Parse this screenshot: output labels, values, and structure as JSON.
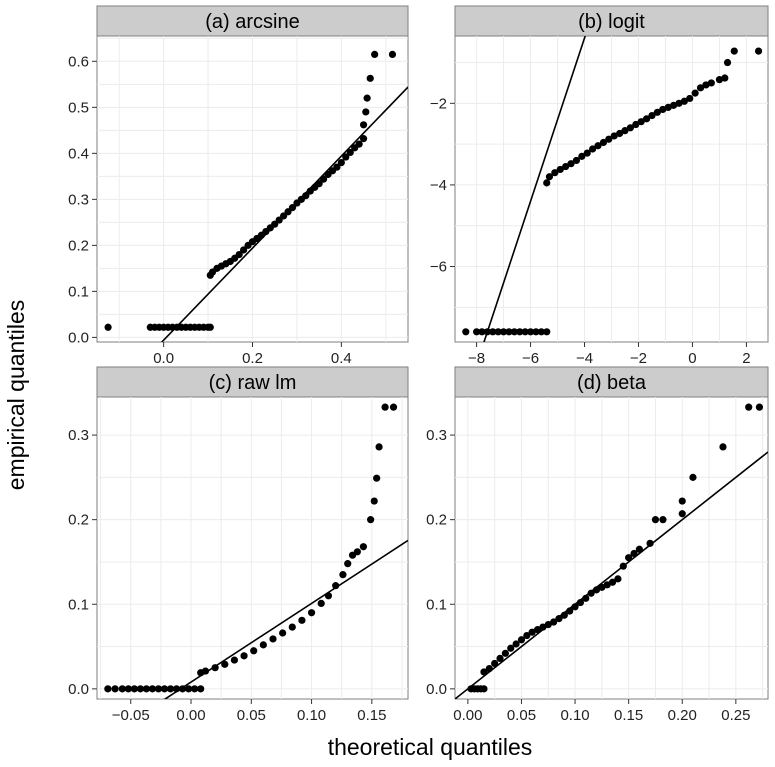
{
  "figure": {
    "xlabel": "theoretical quantiles",
    "ylabel": "empirical quantiles"
  },
  "chart_data": [
    {
      "type": "scatter",
      "title": "(a) arcsine",
      "xlim": [
        -0.15,
        0.55
      ],
      "ylim": [
        -0.01,
        0.655
      ],
      "xticks": [
        0.0,
        0.2,
        0.4
      ],
      "xtick_labels": [
        "0.0",
        "0.2",
        "0.4"
      ],
      "yticks": [
        0.0,
        0.1,
        0.2,
        0.3,
        0.4,
        0.5,
        0.6
      ],
      "ytick_labels": [
        "0.0",
        "0.1",
        "0.2",
        "0.3",
        "0.4",
        "0.5",
        "0.6"
      ],
      "ref_line": {
        "slope": 1.0,
        "intercept": -0.006
      },
      "points": [
        [
          -0.125,
          0.022
        ],
        [
          -0.03,
          0.022
        ],
        [
          -0.02,
          0.022
        ],
        [
          -0.01,
          0.022
        ],
        [
          0.0,
          0.022
        ],
        [
          0.01,
          0.022
        ],
        [
          0.02,
          0.022
        ],
        [
          0.03,
          0.022
        ],
        [
          0.04,
          0.022
        ],
        [
          0.05,
          0.022
        ],
        [
          0.06,
          0.022
        ],
        [
          0.07,
          0.022
        ],
        [
          0.08,
          0.022
        ],
        [
          0.09,
          0.022
        ],
        [
          0.1,
          0.022
        ],
        [
          0.105,
          0.022
        ],
        [
          0.105,
          0.135
        ],
        [
          0.11,
          0.142
        ],
        [
          0.12,
          0.15
        ],
        [
          0.13,
          0.155
        ],
        [
          0.14,
          0.16
        ],
        [
          0.15,
          0.165
        ],
        [
          0.16,
          0.172
        ],
        [
          0.17,
          0.18
        ],
        [
          0.18,
          0.19
        ],
        [
          0.19,
          0.2
        ],
        [
          0.2,
          0.208
        ],
        [
          0.21,
          0.215
        ],
        [
          0.22,
          0.222
        ],
        [
          0.23,
          0.23
        ],
        [
          0.24,
          0.238
        ],
        [
          0.25,
          0.246
        ],
        [
          0.26,
          0.255
        ],
        [
          0.27,
          0.264
        ],
        [
          0.28,
          0.273
        ],
        [
          0.29,
          0.282
        ],
        [
          0.3,
          0.292
        ],
        [
          0.31,
          0.3
        ],
        [
          0.32,
          0.308
        ],
        [
          0.33,
          0.318
        ],
        [
          0.34,
          0.326
        ],
        [
          0.35,
          0.334
        ],
        [
          0.36,
          0.344
        ],
        [
          0.37,
          0.354
        ],
        [
          0.38,
          0.362
        ],
        [
          0.39,
          0.37
        ],
        [
          0.4,
          0.38
        ],
        [
          0.41,
          0.392
        ],
        [
          0.42,
          0.402
        ],
        [
          0.43,
          0.412
        ],
        [
          0.44,
          0.42
        ],
        [
          0.45,
          0.432
        ],
        [
          0.45,
          0.462
        ],
        [
          0.455,
          0.49
        ],
        [
          0.458,
          0.52
        ],
        [
          0.465,
          0.563
        ],
        [
          0.475,
          0.615
        ],
        [
          0.515,
          0.615
        ]
      ]
    },
    {
      "type": "scatter",
      "title": "(b) logit",
      "xlim": [
        -8.8,
        2.8
      ],
      "ylim": [
        -7.85,
        -0.35
      ],
      "xticks": [
        -8,
        -6,
        -4,
        -2,
        0,
        2
      ],
      "xtick_labels": [
        "−8",
        "−6",
        "−4",
        "−2",
        "0",
        "2"
      ],
      "yticks": [
        -6,
        -4,
        -2
      ],
      "ytick_labels": [
        "−6",
        "−4",
        "−2"
      ],
      "ref_line": {
        "slope": 2.0,
        "intercept": 7.6
      },
      "points": [
        [
          -8.4,
          -7.6
        ],
        [
          -8.0,
          -7.6
        ],
        [
          -7.8,
          -7.6
        ],
        [
          -7.6,
          -7.6
        ],
        [
          -7.4,
          -7.6
        ],
        [
          -7.2,
          -7.6
        ],
        [
          -7.0,
          -7.6
        ],
        [
          -6.8,
          -7.6
        ],
        [
          -6.6,
          -7.6
        ],
        [
          -6.4,
          -7.6
        ],
        [
          -6.2,
          -7.6
        ],
        [
          -6.0,
          -7.6
        ],
        [
          -5.8,
          -7.6
        ],
        [
          -5.6,
          -7.6
        ],
        [
          -5.4,
          -7.6
        ],
        [
          -5.4,
          -3.95
        ],
        [
          -5.3,
          -3.8
        ],
        [
          -5.1,
          -3.7
        ],
        [
          -4.9,
          -3.62
        ],
        [
          -4.7,
          -3.55
        ],
        [
          -4.5,
          -3.48
        ],
        [
          -4.3,
          -3.4
        ],
        [
          -4.1,
          -3.3
        ],
        [
          -3.9,
          -3.22
        ],
        [
          -3.7,
          -3.12
        ],
        [
          -3.5,
          -3.04
        ],
        [
          -3.3,
          -2.96
        ],
        [
          -3.1,
          -2.88
        ],
        [
          -2.9,
          -2.8
        ],
        [
          -2.7,
          -2.74
        ],
        [
          -2.5,
          -2.67
        ],
        [
          -2.3,
          -2.6
        ],
        [
          -2.1,
          -2.52
        ],
        [
          -1.9,
          -2.45
        ],
        [
          -1.7,
          -2.38
        ],
        [
          -1.5,
          -2.3
        ],
        [
          -1.3,
          -2.22
        ],
        [
          -1.1,
          -2.15
        ],
        [
          -0.9,
          -2.1
        ],
        [
          -0.7,
          -2.05
        ],
        [
          -0.5,
          -2.0
        ],
        [
          -0.3,
          -1.95
        ],
        [
          -0.1,
          -1.88
        ],
        [
          0.1,
          -1.75
        ],
        [
          0.3,
          -1.62
        ],
        [
          0.5,
          -1.55
        ],
        [
          0.7,
          -1.5
        ],
        [
          1.0,
          -1.42
        ],
        [
          1.2,
          -1.38
        ],
        [
          1.3,
          -1.0
        ],
        [
          1.55,
          -0.72
        ],
        [
          2.45,
          -0.72
        ]
      ]
    },
    {
      "type": "scatter",
      "title": "(c) raw lm",
      "xlim": [
        -0.078,
        0.18
      ],
      "ylim": [
        -0.012,
        0.345
      ],
      "xticks": [
        -0.05,
        0.0,
        0.05,
        0.1,
        0.15
      ],
      "xtick_labels": [
        "−0.05",
        "0.00",
        "0.05",
        "0.10",
        "0.15"
      ],
      "yticks": [
        0.0,
        0.1,
        0.2,
        0.3
      ],
      "ytick_labels": [
        "0.0",
        "0.1",
        "0.2",
        "0.3"
      ],
      "ref_line": {
        "slope": 0.93,
        "intercept": 0.008
      },
      "points": [
        [
          -0.069,
          0.0
        ],
        [
          -0.063,
          0.0
        ],
        [
          -0.057,
          0.0
        ],
        [
          -0.052,
          0.0
        ],
        [
          -0.047,
          0.0
        ],
        [
          -0.042,
          0.0
        ],
        [
          -0.037,
          0.0
        ],
        [
          -0.032,
          0.0
        ],
        [
          -0.027,
          0.0
        ],
        [
          -0.022,
          0.0
        ],
        [
          -0.017,
          0.0
        ],
        [
          -0.012,
          0.0
        ],
        [
          -0.007,
          0.0
        ],
        [
          -0.002,
          0.0
        ],
        [
          0.003,
          0.0
        ],
        [
          0.008,
          0.0
        ],
        [
          0.008,
          0.019
        ],
        [
          0.012,
          0.021
        ],
        [
          0.02,
          0.025
        ],
        [
          0.028,
          0.029
        ],
        [
          0.036,
          0.034
        ],
        [
          0.044,
          0.039
        ],
        [
          0.052,
          0.045
        ],
        [
          0.06,
          0.052
        ],
        [
          0.068,
          0.059
        ],
        [
          0.076,
          0.066
        ],
        [
          0.084,
          0.073
        ],
        [
          0.092,
          0.081
        ],
        [
          0.1,
          0.09
        ],
        [
          0.108,
          0.101
        ],
        [
          0.114,
          0.11
        ],
        [
          0.12,
          0.122
        ],
        [
          0.126,
          0.135
        ],
        [
          0.13,
          0.148
        ],
        [
          0.134,
          0.158
        ],
        [
          0.138,
          0.162
        ],
        [
          0.143,
          0.168
        ],
        [
          0.149,
          0.2
        ],
        [
          0.152,
          0.222
        ],
        [
          0.154,
          0.249
        ],
        [
          0.156,
          0.286
        ],
        [
          0.161,
          0.333
        ],
        [
          0.168,
          0.333
        ]
      ]
    },
    {
      "type": "scatter",
      "title": "(d) beta",
      "xlim": [
        -0.012,
        0.28
      ],
      "ylim": [
        -0.012,
        0.345
      ],
      "xticks": [
        0.0,
        0.05,
        0.1,
        0.15,
        0.2,
        0.25
      ],
      "xtick_labels": [
        "0.00",
        "0.05",
        "0.10",
        "0.15",
        "0.20",
        "0.25"
      ],
      "yticks": [
        0.0,
        0.1,
        0.2,
        0.3
      ],
      "ytick_labels": [
        "0.0",
        "0.1",
        "0.2",
        "0.3"
      ],
      "ref_line": {
        "slope": 1.0,
        "intercept": 0.0
      },
      "points": [
        [
          0.003,
          0.0
        ],
        [
          0.006,
          0.0
        ],
        [
          0.009,
          0.0
        ],
        [
          0.012,
          0.0
        ],
        [
          0.015,
          0.0
        ],
        [
          0.015,
          0.02
        ],
        [
          0.02,
          0.024
        ],
        [
          0.025,
          0.03
        ],
        [
          0.03,
          0.036
        ],
        [
          0.035,
          0.042
        ],
        [
          0.04,
          0.048
        ],
        [
          0.045,
          0.053
        ],
        [
          0.05,
          0.058
        ],
        [
          0.055,
          0.063
        ],
        [
          0.06,
          0.067
        ],
        [
          0.065,
          0.07
        ],
        [
          0.07,
          0.073
        ],
        [
          0.075,
          0.076
        ],
        [
          0.08,
          0.079
        ],
        [
          0.085,
          0.083
        ],
        [
          0.09,
          0.087
        ],
        [
          0.095,
          0.092
        ],
        [
          0.1,
          0.097
        ],
        [
          0.105,
          0.102
        ],
        [
          0.11,
          0.107
        ],
        [
          0.115,
          0.113
        ],
        [
          0.12,
          0.117
        ],
        [
          0.125,
          0.12
        ],
        [
          0.13,
          0.123
        ],
        [
          0.135,
          0.126
        ],
        [
          0.14,
          0.13
        ],
        [
          0.145,
          0.145
        ],
        [
          0.15,
          0.155
        ],
        [
          0.155,
          0.16
        ],
        [
          0.16,
          0.165
        ],
        [
          0.17,
          0.172
        ],
        [
          0.175,
          0.2
        ],
        [
          0.182,
          0.2
        ],
        [
          0.2,
          0.207
        ],
        [
          0.2,
          0.222
        ],
        [
          0.21,
          0.25
        ],
        [
          0.238,
          0.286
        ],
        [
          0.262,
          0.333
        ],
        [
          0.272,
          0.333
        ]
      ]
    }
  ]
}
